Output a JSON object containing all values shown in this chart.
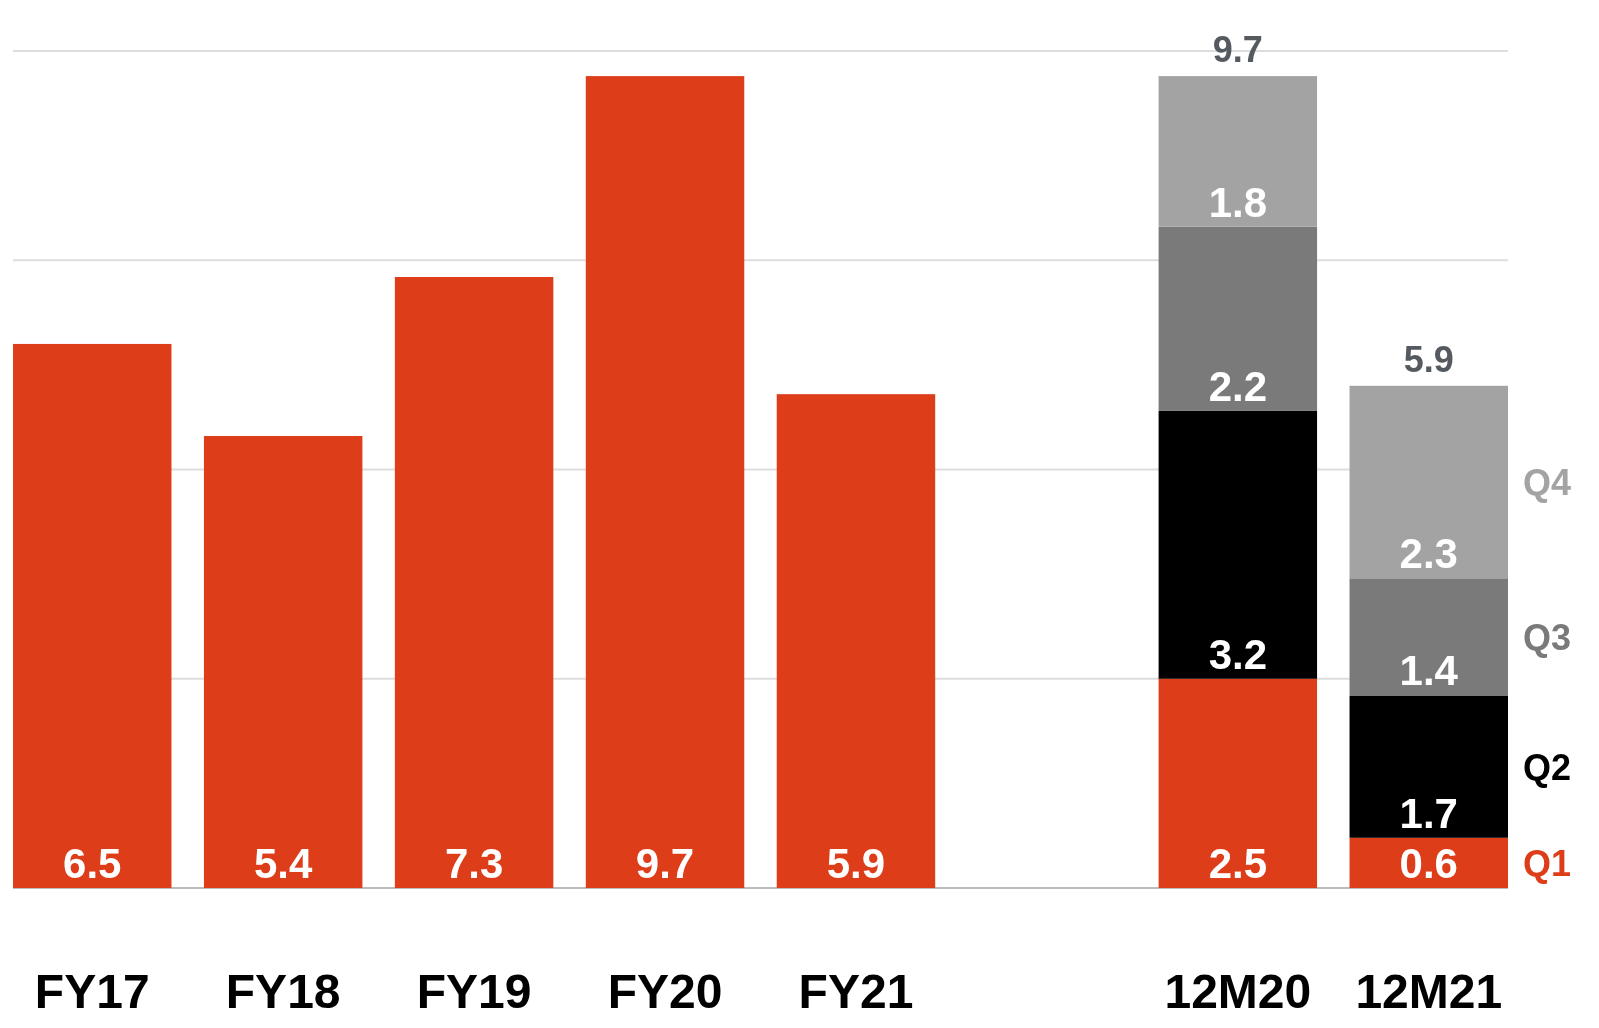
{
  "chart_data": {
    "type": "bar",
    "stacked": true,
    "categories": [
      "FY17",
      "FY18",
      "FY19",
      "FY20",
      "FY21",
      null,
      "12M20",
      "12M21"
    ],
    "series": [
      {
        "color": "#dd3d19",
        "values": [
          6.5,
          5.4,
          7.3,
          9.7,
          5.9,
          null,
          null,
          null
        ]
      },
      {
        "name": "Q1",
        "color": "#dd3d19",
        "values": [
          null,
          null,
          null,
          null,
          null,
          null,
          2.5,
          0.6
        ]
      },
      {
        "name": "Q2",
        "color": "#000000",
        "values": [
          null,
          null,
          null,
          null,
          null,
          null,
          3.2,
          1.7
        ]
      },
      {
        "name": "Q3",
        "color": "#797a79",
        "values": [
          null,
          null,
          null,
          null,
          null,
          null,
          2.2,
          1.4
        ]
      },
      {
        "name": "Q4",
        "color": "#a3a3a3",
        "values": [
          null,
          null,
          null,
          null,
          null,
          null,
          1.8,
          2.3
        ]
      }
    ],
    "totals": [
      null,
      null,
      null,
      null,
      null,
      null,
      "9.7",
      "5.9"
    ],
    "ylim": [
      0,
      10
    ],
    "yticks": [
      {
        "value": 0,
        "label": null
      },
      {
        "value": 2.5,
        "label": null
      },
      {
        "value": 5,
        "label": null
      },
      {
        "value": 7.5,
        "label": null
      },
      {
        "value": 10,
        "label": null
      }
    ],
    "tick_labels": "x",
    "grid": "y",
    "data_labels": true,
    "legend": "right"
  }
}
